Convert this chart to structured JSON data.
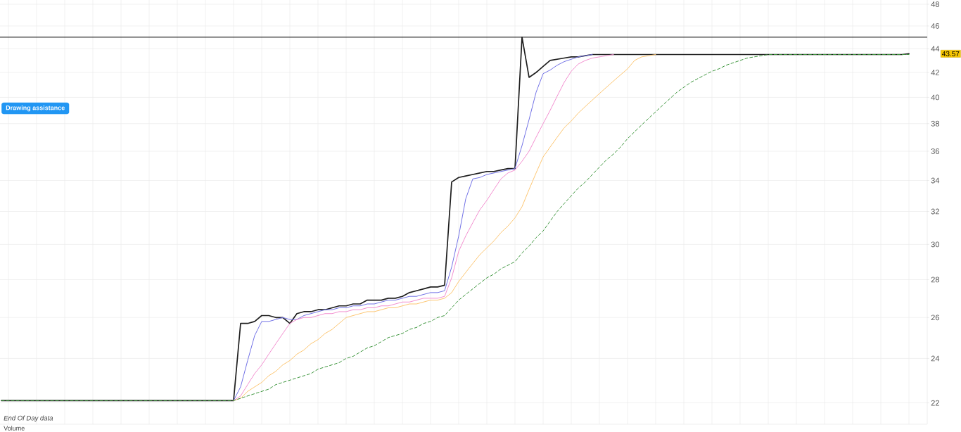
{
  "chart_data": {
    "type": "line",
    "log": true,
    "grid": true,
    "tick_labels": "y",
    "ylim": [
      21.1,
      48.4
    ],
    "yticks": [
      22,
      24,
      26,
      28,
      30,
      32,
      34,
      36,
      38,
      40,
      42,
      44,
      46,
      48
    ],
    "categories": [
      null,
      null,
      null,
      null,
      null,
      null,
      null,
      null,
      null,
      null,
      null,
      null,
      null,
      null,
      null,
      null,
      null,
      null,
      null,
      null,
      null,
      null,
      null,
      null,
      null,
      null,
      null,
      null,
      null,
      null,
      null,
      null,
      null,
      null,
      null,
      null,
      null,
      null,
      null,
      null,
      null,
      null,
      null,
      null,
      null,
      null,
      null,
      null,
      null,
      null,
      null,
      null,
      null,
      null,
      null,
      null,
      null,
      null,
      null,
      null,
      null,
      null,
      null,
      null,
      null,
      null,
      null,
      null,
      null,
      null,
      null,
      null,
      null,
      null,
      null,
      null,
      null,
      null,
      null,
      null,
      null,
      null,
      null,
      null,
      null,
      null,
      null,
      null,
      null,
      null,
      null,
      null,
      null,
      null,
      null,
      null,
      null,
      null,
      null,
      null,
      null,
      null,
      null,
      null,
      null,
      null,
      null,
      null,
      null,
      null,
      null,
      null,
      null,
      null,
      null,
      null,
      null,
      null,
      null,
      null,
      null,
      null,
      null,
      null,
      null,
      null,
      null,
      null,
      null,
      null
    ],
    "series": [
      {
        "color": "#1e1e1e",
        "values": [
          22.1,
          22.1,
          22.1,
          22.1,
          22.1,
          22.1,
          22.1,
          22.1,
          22.1,
          22.1,
          22.1,
          22.1,
          22.1,
          22.1,
          22.1,
          22.1,
          22.1,
          22.1,
          22.1,
          22.1,
          22.1,
          22.1,
          22.1,
          22.1,
          22.1,
          22.1,
          22.1,
          22.1,
          22.1,
          22.1,
          22.1,
          22.1,
          22.1,
          22.1,
          25.7,
          25.7,
          25.8,
          26.1,
          26.1,
          26.0,
          26.0,
          25.7,
          26.2,
          26.3,
          26.3,
          26.4,
          26.4,
          26.5,
          26.6,
          26.6,
          26.7,
          26.7,
          26.9,
          26.9,
          26.9,
          27.0,
          27.0,
          27.1,
          27.3,
          27.4,
          27.5,
          27.6,
          27.6,
          27.7,
          33.9,
          34.2,
          34.3,
          34.4,
          34.5,
          34.6,
          34.6,
          34.7,
          34.8,
          34.8,
          45.0,
          41.6,
          42.0,
          42.5,
          43.0,
          43.1,
          43.2,
          43.3,
          43.3,
          43.4,
          43.5,
          43.5,
          43.5,
          43.5,
          43.5,
          43.5,
          43.5,
          43.5,
          43.5,
          43.5,
          43.5,
          43.5,
          43.5,
          43.5,
          43.5,
          43.5,
          43.5,
          43.5,
          43.5,
          43.5,
          43.5,
          43.5,
          43.5,
          43.5,
          43.5,
          43.5,
          43.5,
          43.5,
          43.5,
          43.5,
          43.5,
          43.5,
          43.5,
          43.5,
          43.5,
          43.5,
          43.5,
          43.5,
          43.5,
          43.5,
          43.5,
          43.5,
          43.5,
          43.5,
          43.5,
          43.57
        ]
      },
      {
        "color": "#7272e6",
        "values": [
          null,
          null,
          null,
          null,
          null,
          null,
          null,
          null,
          null,
          null,
          null,
          null,
          null,
          null,
          null,
          null,
          null,
          null,
          null,
          null,
          null,
          null,
          null,
          null,
          null,
          null,
          null,
          null,
          null,
          null,
          null,
          null,
          null,
          22.1,
          22.7,
          23.9,
          25.1,
          25.8,
          25.8,
          25.9,
          26.0,
          25.9,
          25.9,
          26.1,
          26.2,
          26.3,
          26.4,
          26.4,
          26.5,
          26.5,
          26.6,
          26.6,
          26.7,
          26.7,
          26.8,
          26.9,
          26.9,
          27.0,
          27.1,
          27.1,
          27.2,
          27.3,
          27.3,
          27.4,
          28.7,
          30.5,
          32.8,
          34.1,
          34.2,
          34.4,
          34.5,
          34.6,
          34.7,
          34.8,
          36.4,
          38.3,
          40.4,
          41.9,
          42.2,
          42.6,
          42.9,
          43.1,
          43.3,
          43.4,
          43.5,
          null,
          null,
          null,
          null,
          null,
          null,
          null,
          null,
          null,
          null,
          null,
          null,
          null,
          null,
          null,
          null,
          null,
          null,
          null,
          null,
          null,
          null,
          null,
          null,
          null,
          null,
          null,
          null,
          null,
          null,
          null,
          null,
          null,
          null,
          null,
          null,
          null,
          null,
          null,
          null,
          null,
          null,
          null,
          null,
          null
        ]
      },
      {
        "color": "#f38fd0",
        "values": [
          null,
          null,
          null,
          null,
          null,
          null,
          null,
          null,
          null,
          null,
          null,
          null,
          null,
          null,
          null,
          null,
          null,
          null,
          null,
          null,
          null,
          null,
          null,
          null,
          null,
          null,
          null,
          null,
          null,
          null,
          null,
          null,
          null,
          22.1,
          22.3,
          22.8,
          23.3,
          23.7,
          24.2,
          24.7,
          25.2,
          25.7,
          25.9,
          26.0,
          26.0,
          26.1,
          26.2,
          26.2,
          26.3,
          26.3,
          26.4,
          26.4,
          26.5,
          26.5,
          26.6,
          26.6,
          26.7,
          26.8,
          26.8,
          26.9,
          27.0,
          27.0,
          27.0,
          27.1,
          28.1,
          29.6,
          30.5,
          31.3,
          32.1,
          32.7,
          33.4,
          34.1,
          34.5,
          34.7,
          35.3,
          36.0,
          37.0,
          38.0,
          39.0,
          40.1,
          41.2,
          42.1,
          42.7,
          43.0,
          43.2,
          43.3,
          43.4,
          43.5,
          null,
          null,
          null,
          null,
          null,
          null,
          null,
          null,
          null,
          null,
          null,
          null,
          null,
          null,
          null,
          null,
          null,
          null,
          null,
          null,
          null,
          null,
          null,
          null,
          null,
          null,
          null,
          null,
          null,
          null,
          null,
          null,
          null,
          null,
          null,
          null,
          null,
          null,
          null,
          null,
          null,
          null
        ]
      },
      {
        "color": "#fdc672",
        "values": [
          null,
          null,
          null,
          null,
          null,
          null,
          null,
          null,
          null,
          null,
          null,
          null,
          null,
          null,
          null,
          null,
          null,
          null,
          null,
          null,
          null,
          null,
          null,
          null,
          null,
          null,
          null,
          null,
          null,
          null,
          null,
          null,
          null,
          22.1,
          22.2,
          22.5,
          22.7,
          22.9,
          23.2,
          23.4,
          23.7,
          23.9,
          24.2,
          24.4,
          24.7,
          24.9,
          25.2,
          25.4,
          25.7,
          26.0,
          26.1,
          26.2,
          26.3,
          26.3,
          26.4,
          26.5,
          26.5,
          26.6,
          26.7,
          26.7,
          26.8,
          26.9,
          26.9,
          27.0,
          27.3,
          27.9,
          28.4,
          28.9,
          29.4,
          29.8,
          30.2,
          30.7,
          31.1,
          31.6,
          32.3,
          33.4,
          34.5,
          35.6,
          36.3,
          37.0,
          37.7,
          38.2,
          38.8,
          39.3,
          39.8,
          40.3,
          40.8,
          41.3,
          41.8,
          42.3,
          43.0,
          43.3,
          43.4,
          43.5,
          null,
          null,
          null,
          null,
          null,
          null,
          null,
          null,
          null,
          null,
          null,
          null,
          null,
          null,
          null,
          null,
          null,
          null,
          null,
          null,
          null,
          null,
          null,
          null,
          null,
          null,
          null,
          null,
          null,
          null,
          null,
          null,
          null,
          null,
          null,
          null
        ]
      },
      {
        "color": "#3d963d",
        "line_style": "dashed",
        "values": [
          22.1,
          22.1,
          22.1,
          22.1,
          22.1,
          22.1,
          22.1,
          22.1,
          22.1,
          22.1,
          22.1,
          22.1,
          22.1,
          22.1,
          22.1,
          22.1,
          22.1,
          22.1,
          22.1,
          22.1,
          22.1,
          22.1,
          22.1,
          22.1,
          22.1,
          22.1,
          22.1,
          22.1,
          22.1,
          22.1,
          22.1,
          22.1,
          22.1,
          22.1,
          22.2,
          22.3,
          22.4,
          22.5,
          22.6,
          22.8,
          22.9,
          23.0,
          23.1,
          23.2,
          23.3,
          23.5,
          23.6,
          23.7,
          23.8,
          24.0,
          24.1,
          24.3,
          24.5,
          24.6,
          24.8,
          25.0,
          25.1,
          25.2,
          25.4,
          25.5,
          25.7,
          25.8,
          26.0,
          26.1,
          26.5,
          26.9,
          27.2,
          27.5,
          27.8,
          28.1,
          28.3,
          28.6,
          28.8,
          29.0,
          29.5,
          29.9,
          30.4,
          30.8,
          31.4,
          32.0,
          32.5,
          33.0,
          33.5,
          33.9,
          34.4,
          34.9,
          35.4,
          35.8,
          36.3,
          36.9,
          37.4,
          37.9,
          38.4,
          38.9,
          39.4,
          39.9,
          40.4,
          40.8,
          41.2,
          41.5,
          41.8,
          42.1,
          42.3,
          42.6,
          42.8,
          43.0,
          43.2,
          43.3,
          43.4,
          43.5,
          43.5,
          43.5,
          43.5,
          43.5,
          43.5,
          43.5,
          43.5,
          43.5,
          43.5,
          43.5,
          43.5,
          43.5,
          43.5,
          43.5,
          43.5,
          43.5,
          43.5,
          43.5,
          43.5,
          43.5
        ]
      }
    ],
    "ref_lines": [
      {
        "axis": "y",
        "value": 45,
        "color": "#000000"
      }
    ],
    "annotations": [
      "End Of Day data",
      "Volume",
      "Drawing assistance",
      "43.57"
    ]
  }
}
